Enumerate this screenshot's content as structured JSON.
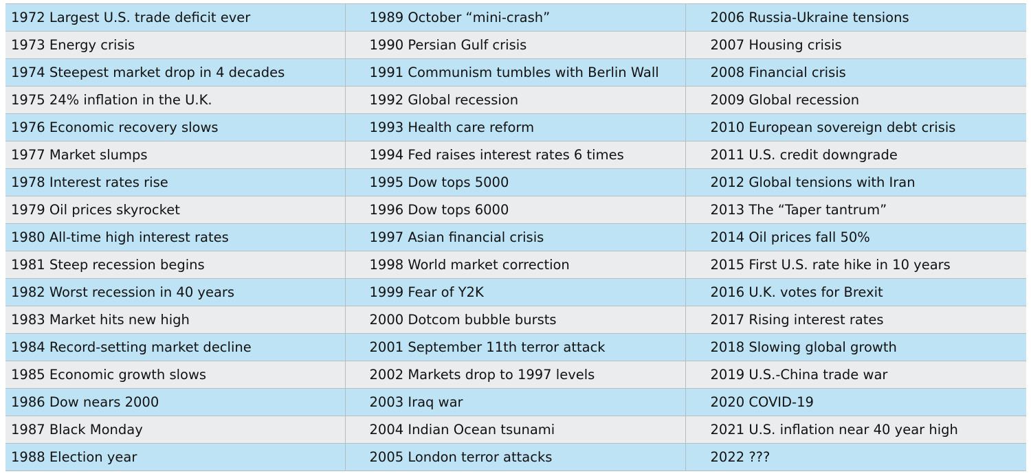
{
  "colors": {
    "row_blue": "#bee3f4",
    "row_gray": "#eaeced",
    "grid_line": "#b4bcc4",
    "text": "#111111"
  },
  "columns": [
    {
      "items": [
        "1972  Largest U.S. trade deficit ever",
        "1973  Energy crisis",
        "1974  Steepest market drop in 4 decades",
        "1975  24% inflation in the U.K.",
        "1976  Economic recovery slows",
        "1977  Market slumps",
        "1978  Interest rates rise",
        "1979  Oil prices skyrocket",
        "1980  All-time high interest rates",
        "1981  Steep recession begins",
        "1982  Worst recession in 40 years",
        "1983  Market hits new high",
        "1984  Record-setting market decline",
        "1985  Economic growth slows",
        "1986  Dow nears 2000",
        "1987  Black Monday",
        "1988  Election year"
      ]
    },
    {
      "items": [
        "1989  October “mini-crash”",
        "1990  Persian Gulf crisis",
        "1991  Communism tumbles with Berlin Wall",
        "1992  Global recession",
        "1993  Health care reform",
        "1994  Fed raises interest rates 6 times",
        "1995  Dow tops 5000",
        "1996  Dow tops 6000",
        "1997  Asian financial crisis",
        "1998  World market correction",
        "1999  Fear of Y2K",
        "2000  Dotcom bubble bursts",
        "2001  September 11th terror attack",
        "2002  Markets drop to 1997 levels",
        "2003  Iraq war",
        "2004  Indian Ocean tsunami",
        "2005  London terror attacks"
      ]
    },
    {
      "items": [
        "2006  Russia-Ukraine tensions",
        "2007  Housing crisis",
        "2008  Financial crisis",
        "2009  Global recession",
        "2010  European sovereign debt crisis",
        "2011  U.S. credit downgrade",
        "2012  Global tensions with Iran",
        "2013  The “Taper tantrum”",
        "2014  Oil prices fall 50%",
        "2015  First U.S. rate hike in 10 years",
        "2016  U.K. votes for Brexit",
        "2017  Rising interest rates",
        "2018  Slowing global growth",
        "2019  U.S.-China trade war",
        "2020  COVID-19",
        "2021  U.S. inflation near 40 year high",
        "2022  ???"
      ]
    }
  ]
}
